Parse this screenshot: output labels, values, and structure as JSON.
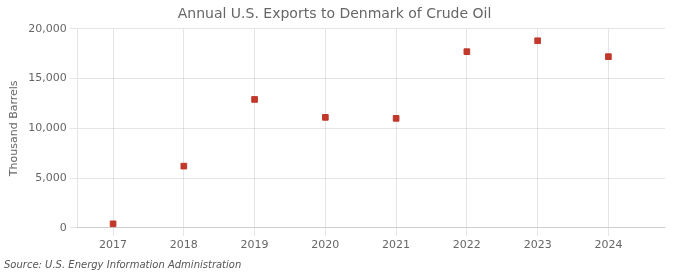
{
  "chart_data": {
    "type": "scatter",
    "title": "Annual U.S. Exports to Denmark of Crude Oil",
    "ylabel": "Thousand Barrels",
    "annotations": [
      "Source: U.S. Energy Information Administration"
    ],
    "x": [
      2017,
      2018,
      2019,
      2020,
      2021,
      2022,
      2023,
      2024
    ],
    "values": [
      400,
      6200,
      12900,
      11100,
      11000,
      17700,
      18800,
      17200
    ],
    "xlim": [
      2016.5,
      2024.8
    ],
    "xticks": [
      2017,
      2018,
      2019,
      2020,
      2021,
      2022,
      2023,
      2024
    ],
    "ylim": [
      0,
      20000
    ],
    "yticks": [
      0,
      {
        "value": 5000,
        "label": "5,000"
      },
      {
        "value": 10000,
        "label": "10,000"
      },
      {
        "value": 15000,
        "label": "15,000"
      },
      {
        "value": 20000,
        "label": "20,000"
      }
    ],
    "color": "#c0392b",
    "marker": "square",
    "grid": true
  }
}
